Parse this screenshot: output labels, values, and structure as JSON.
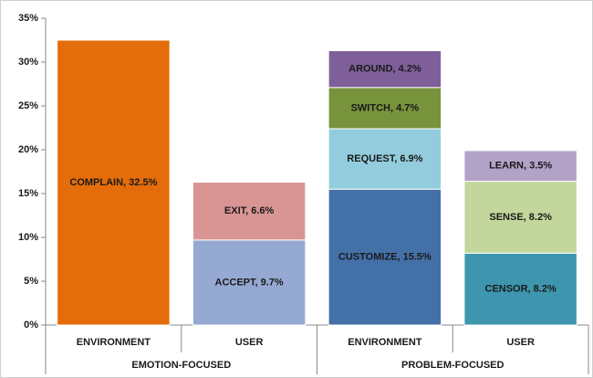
{
  "chart_data": {
    "type": "stacked_bar",
    "ylim": [
      0,
      35
    ],
    "yticks": [
      {
        "value": 0,
        "label": "0%"
      },
      {
        "value": 5,
        "label": "5%"
      },
      {
        "value": 10,
        "label": "10%"
      },
      {
        "value": 15,
        "label": "15%"
      },
      {
        "value": 20,
        "label": "20%"
      },
      {
        "value": 25,
        "label": "25%"
      },
      {
        "value": 30,
        "label": "30%"
      },
      {
        "value": 35,
        "label": "35%"
      }
    ],
    "groups": [
      {
        "name": "EMOTION-FOCUSED",
        "bars": [
          {
            "category": "ENVIRONMENT",
            "segments": [
              {
                "value": 32.5,
                "value_label": "COMPLAIN, 32.5%",
                "color": "#e46c0a"
              }
            ]
          },
          {
            "category": "USER",
            "segments": [
              {
                "value": 9.7,
                "value_label": "ACCEPT, 9.7%",
                "color": "#95a9d3"
              },
              {
                "value": 6.6,
                "value_label": "EXIT, 6.6%",
                "color": "#d99594"
              }
            ]
          }
        ]
      },
      {
        "name": "PROBLEM-FOCUSED",
        "bars": [
          {
            "category": "ENVIRONMENT",
            "segments": [
              {
                "value": 15.5,
                "value_label": "CUSTOMIZE, 15.5%",
                "color": "#4470a8"
              },
              {
                "value": 6.9,
                "value_label": "REQUEST, 6.9%",
                "color": "#93cddd"
              },
              {
                "value": 4.7,
                "value_label": "SWITCH, 4.7%",
                "color": "#77933c"
              },
              {
                "value": 4.2,
                "value_label": "AROUND, 4.2%",
                "color": "#7f5f9a"
              }
            ]
          },
          {
            "category": "USER",
            "segments": [
              {
                "value": 8.2,
                "value_label": "CENSOR, 8.2%",
                "color": "#3d96ae"
              },
              {
                "value": 8.2,
                "value_label": "SENSE, 8.2%",
                "color": "#c3d69b"
              },
              {
                "value": 3.5,
                "value_label": "LEARN, 3.5%",
                "color": "#b3a2c7"
              }
            ]
          }
        ]
      }
    ]
  }
}
